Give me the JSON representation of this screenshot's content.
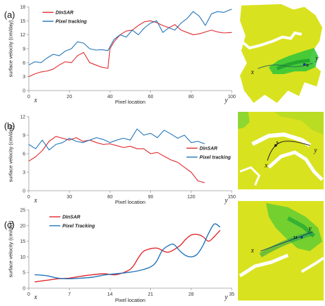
{
  "colors": {
    "dinsar": "#e0262b",
    "pixel_tracking": "#1f73b8",
    "axis": "#9a9a9a",
    "map_base": "#d9e21f",
    "map_fast": "#37c83a",
    "map_bg": "#ffffff"
  },
  "chart_data": [
    {
      "type": "line",
      "panel_label": "(a)",
      "ylabel": "surface velocity (cm/day)",
      "xlabel": "Pixel location",
      "x_start_label": "x",
      "x_end_label": "y",
      "xlim": [
        0,
        100
      ],
      "ylim": [
        0,
        18
      ],
      "x_ticks": [
        0,
        20,
        40,
        60,
        80,
        100
      ],
      "y_ticks": [
        0,
        3,
        6,
        9,
        12,
        15,
        18
      ],
      "legend": {
        "placement": "top-left"
      },
      "series": [
        {
          "name": "DInSAR",
          "color": "#e0262b",
          "x": [
            0,
            3,
            6,
            9,
            12,
            15,
            18,
            21,
            24,
            27,
            30,
            33,
            36,
            39,
            40,
            42,
            45,
            48,
            51,
            54,
            57,
            60,
            63,
            66,
            69,
            72,
            75,
            78,
            81,
            84,
            87,
            90,
            93,
            96,
            100
          ],
          "y": [
            3.0,
            3.6,
            4.0,
            4.2,
            4.6,
            5.5,
            6.2,
            6.0,
            7.5,
            8.2,
            6.0,
            5.5,
            5.0,
            4.8,
            9.0,
            10.5,
            12.0,
            12.8,
            13.0,
            14.0,
            14.8,
            15.0,
            14.6,
            14.0,
            13.5,
            14.2,
            13.0,
            12.5,
            12.0,
            12.2,
            12.6,
            13.0,
            12.6,
            12.4,
            12.5
          ]
        },
        {
          "name": "Pixel tracking",
          "color": "#1f73b8",
          "x": [
            0,
            3,
            6,
            9,
            12,
            15,
            18,
            21,
            24,
            27,
            30,
            33,
            36,
            39,
            42,
            45,
            48,
            51,
            54,
            57,
            60,
            63,
            66,
            69,
            72,
            75,
            78,
            81,
            84,
            87,
            90,
            93,
            96,
            100
          ],
          "y": [
            5.5,
            6.2,
            6.0,
            7.0,
            7.8,
            7.5,
            8.5,
            9.0,
            10.5,
            10.2,
            9.0,
            8.7,
            8.8,
            8.6,
            11.0,
            12.0,
            11.5,
            13.0,
            12.0,
            13.5,
            14.5,
            15.0,
            12.5,
            13.5,
            13.0,
            14.5,
            15.5,
            17.0,
            16.0,
            14.0,
            16.5,
            17.0,
            16.8,
            17.5
          ]
        }
      ]
    },
    {
      "type": "line",
      "panel_label": "(b)",
      "ylabel": "surface velocity (cm/day)",
      "xlabel": "Pixel location",
      "x_start_label": "x",
      "x_end_label": "y",
      "xlim": [
        0,
        150
      ],
      "ylim": [
        0,
        12
      ],
      "x_ticks": [
        0,
        30,
        60,
        90,
        120,
        150
      ],
      "y_ticks": [
        0,
        3,
        6,
        9,
        12
      ],
      "legend": {
        "placement": "right"
      },
      "series": [
        {
          "name": "DInSAR",
          "color": "#e0262b",
          "x": [
            0,
            5,
            10,
            15,
            20,
            25,
            30,
            35,
            40,
            45,
            50,
            55,
            60,
            65,
            70,
            75,
            80,
            85,
            90,
            95,
            100,
            105,
            110,
            115,
            120,
            125,
            130
          ],
          "y": [
            4.8,
            5.5,
            6.5,
            8.0,
            8.8,
            8.5,
            8.2,
            8.6,
            8.0,
            8.2,
            7.8,
            7.5,
            7.6,
            7.3,
            7.0,
            7.2,
            6.8,
            6.8,
            6.0,
            6.2,
            5.6,
            5.0,
            4.6,
            3.8,
            3.0,
            1.6,
            1.3
          ]
        },
        {
          "name": "Pixel tracking",
          "color": "#1f73b8",
          "x": [
            0,
            5,
            10,
            15,
            20,
            25,
            30,
            35,
            40,
            45,
            50,
            55,
            60,
            65,
            70,
            75,
            80,
            85,
            90,
            95,
            100,
            105,
            110,
            115,
            120,
            125,
            130
          ],
          "y": [
            7.5,
            6.8,
            8.2,
            6.6,
            7.5,
            7.8,
            8.5,
            8.0,
            7.8,
            8.2,
            8.6,
            8.3,
            7.8,
            8.2,
            8.5,
            8.2,
            10.0,
            9.0,
            9.3,
            8.6,
            9.8,
            9.2,
            8.5,
            9.0,
            7.8,
            8.0,
            7.6
          ]
        }
      ]
    },
    {
      "type": "line",
      "panel_label": "(c)",
      "ylabel": "surface velocity (cm/day)",
      "xlabel": "Pixel location",
      "x_start_label": "x",
      "x_end_label": "y",
      "xlim": [
        0,
        35
      ],
      "ylim": [
        0,
        25
      ],
      "x_ticks": [
        0,
        7,
        14,
        21,
        28,
        35
      ],
      "y_ticks": [
        0,
        5,
        10,
        15,
        20,
        25
      ],
      "legend": {
        "placement": "top-left"
      },
      "series": [
        {
          "name": "DInSAR",
          "color": "#e0262b",
          "x": [
            1,
            3,
            5,
            7,
            9,
            11,
            13,
            15,
            17,
            18,
            19,
            20,
            22,
            24,
            26,
            27,
            28,
            29,
            30,
            31,
            32,
            33
          ],
          "y": [
            2.0,
            2.5,
            3.0,
            3.2,
            3.8,
            4.3,
            4.6,
            4.3,
            5.5,
            7.0,
            10.0,
            12.0,
            12.8,
            11.5,
            13.5,
            15.5,
            17.0,
            17.2,
            16.5,
            15.0,
            16.5,
            18.5
          ]
        },
        {
          "name": "Pixel Tracking",
          "color": "#1f73b8",
          "x": [
            1,
            3,
            5,
            7,
            9,
            11,
            13,
            15,
            17,
            19,
            21,
            22,
            23,
            24,
            25,
            26,
            27,
            28,
            29,
            30,
            31,
            32,
            33
          ],
          "y": [
            4.3,
            4.0,
            3.2,
            3.0,
            3.2,
            3.5,
            4.2,
            4.6,
            5.0,
            5.6,
            6.8,
            8.5,
            12.0,
            13.5,
            14.0,
            12.0,
            10.5,
            10.0,
            10.8,
            13.5,
            17.5,
            20.5,
            19.5
          ]
        }
      ]
    }
  ],
  "maps": [
    {
      "x_label": "x",
      "y_label": "y",
      "point_label": "8"
    },
    {
      "x_label": "x",
      "y_label": "y",
      "point_label": "9"
    },
    {
      "x_label": "x",
      "y_label": "y",
      "point_label": "14"
    }
  ]
}
